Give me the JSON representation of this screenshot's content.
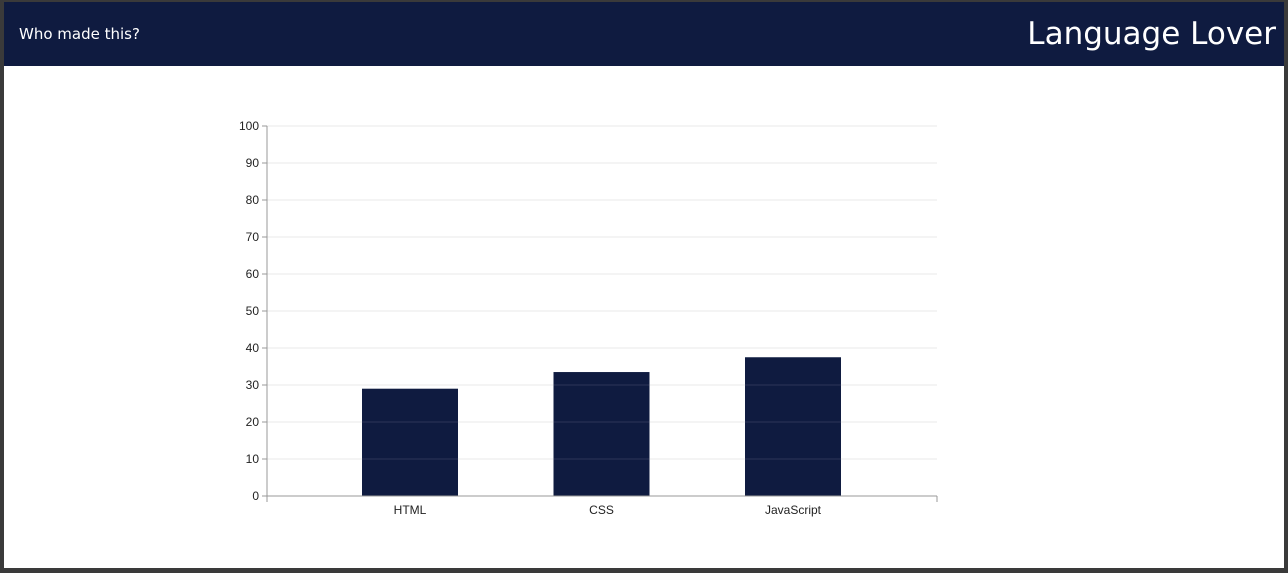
{
  "header": {
    "who_made_this": "Who made this?",
    "title": "Language Lover"
  },
  "colors": {
    "header_bg": "#0f1b40",
    "bar": "#0f1b40",
    "grid": "#e6e6e6",
    "axis": "#999999"
  },
  "chart_data": {
    "type": "bar",
    "title": "",
    "xlabel": "",
    "ylabel": "",
    "categories": [
      "HTML",
      "CSS",
      "JavaScript"
    ],
    "values": [
      29,
      33.5,
      37.5
    ],
    "ylim": [
      0,
      100
    ],
    "yticks": [
      0,
      10,
      20,
      30,
      40,
      50,
      60,
      70,
      80,
      90,
      100
    ],
    "grid": true,
    "legend": "none"
  }
}
